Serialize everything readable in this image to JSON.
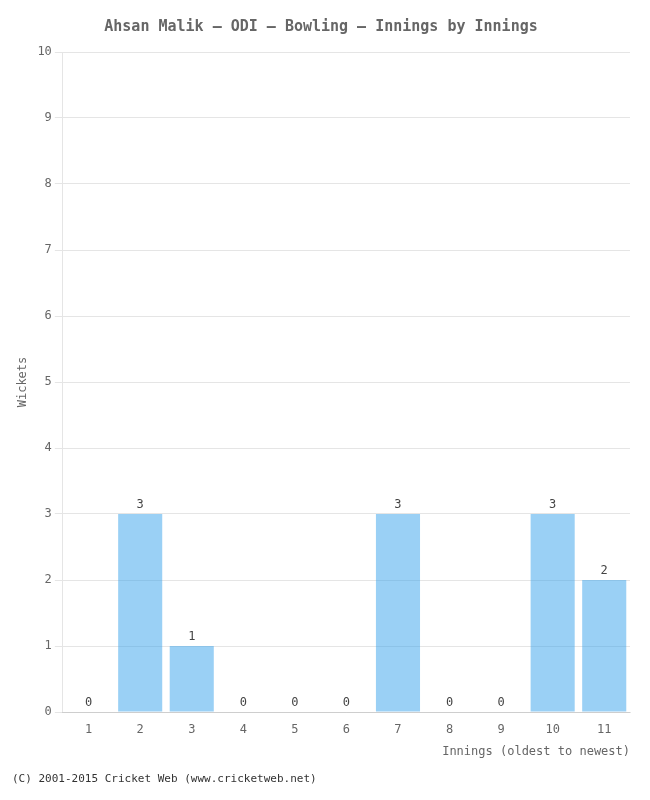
{
  "chart_data": {
    "type": "bar",
    "title": "Ahsan Malik – ODI – Bowling – Innings by Innings",
    "x_label": "Innings (oldest to newest)",
    "y_label": "Wickets",
    "categories": [
      "1",
      "2",
      "3",
      "4",
      "5",
      "6",
      "7",
      "8",
      "9",
      "10",
      "11"
    ],
    "values": [
      0,
      3,
      1,
      0,
      0,
      0,
      3,
      0,
      0,
      3,
      2
    ],
    "ylim": [
      0,
      10
    ],
    "yticks": [
      0,
      1,
      2,
      3,
      4,
      5,
      6,
      7,
      8,
      9,
      10
    ],
    "grid": true,
    "data_labels": true,
    "annotations": [
      "(C) 2001-2015 Cricket Web (www.cricketweb.net)"
    ]
  }
}
